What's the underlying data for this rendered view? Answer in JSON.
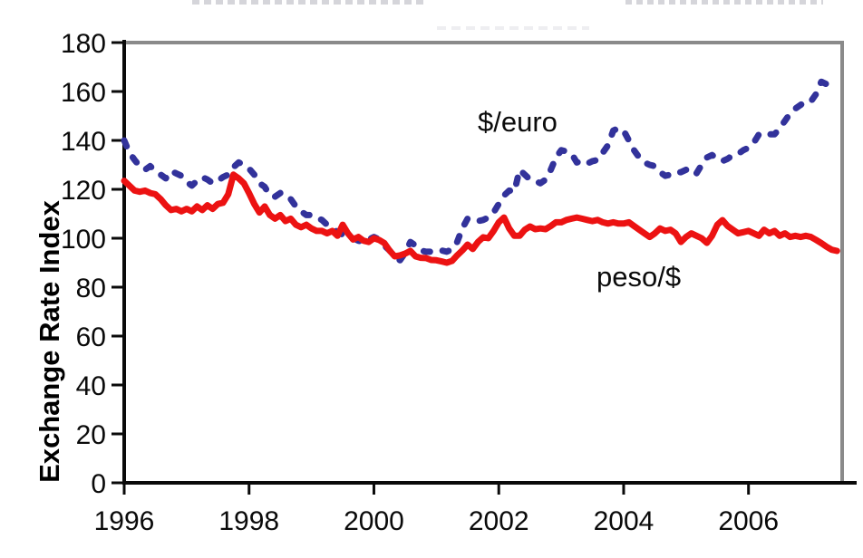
{
  "figure": {
    "background": "#ffffff",
    "top_edge_artifacts": "cropped illegible text fragments"
  },
  "labels": {
    "euro": "$/euro",
    "peso": "peso/$"
  },
  "colors": {
    "euro_line": "#32329B",
    "peso_line": "#EC1212",
    "frame_gray": "#8a8a8a",
    "axis_black": "#0a0a0a"
  },
  "chart_data": {
    "type": "line",
    "title": "",
    "xlabel": "",
    "ylabel": "Exchange Rate Index",
    "xlim": [
      1996,
      2007.5
    ],
    "ylim": [
      0,
      180
    ],
    "grid": false,
    "legend_position": "inline-annotations",
    "x_ticks": [
      1996,
      1998,
      2000,
      2002,
      2004,
      2006
    ],
    "y_ticks": [
      0,
      20,
      40,
      60,
      80,
      100,
      120,
      140,
      160,
      180
    ],
    "x_start": 1996.0,
    "x_step": 0.0833333,
    "x_unit": "monthly",
    "series": [
      {
        "id": "euro",
        "name": "$/euro",
        "color": "#32329B",
        "style": "dashed",
        "values": [
          140,
          135,
          132,
          129.5,
          128,
          129.5,
          127.5,
          126,
          124.5,
          127.5,
          126.5,
          125.5,
          123,
          121.5,
          123.5,
          125,
          124,
          122.5,
          123.5,
          125,
          126,
          129,
          131,
          130,
          128.5,
          126,
          122.5,
          121,
          117.5,
          117,
          118.5,
          116.5,
          116,
          113,
          111,
          109.5,
          109.5,
          108.5,
          107.5,
          105.5,
          104,
          102.5,
          101.5,
          101,
          100,
          99,
          98.5,
          99.5,
          100.5,
          99.5,
          97,
          95,
          92.5,
          91,
          94,
          98.5,
          97,
          95,
          94.5,
          94.5,
          95,
          95,
          94.5,
          95.5,
          98.5,
          104,
          108,
          107.5,
          107,
          107.5,
          108.5,
          110.5,
          114,
          117.5,
          119.5,
          119,
          128,
          126,
          124,
          123.5,
          122.5,
          124,
          128,
          133,
          136,
          135.5,
          134.5,
          131,
          131.5,
          130.5,
          131.5,
          132,
          135,
          138,
          144,
          145,
          144,
          140,
          136,
          133,
          131,
          130,
          129.5,
          127,
          125.5,
          126,
          127,
          127,
          128,
          126,
          126.5,
          130,
          133,
          134,
          132.5,
          131.5,
          132.5,
          134,
          134.5,
          136,
          137,
          139,
          142.5,
          143,
          142.5,
          142.5,
          145,
          148,
          151,
          153,
          154.5,
          156,
          156,
          159,
          164,
          163,
          163.5,
          165
        ]
      },
      {
        "id": "peso",
        "name": "peso/$",
        "color": "#EC1212",
        "style": "solid",
        "values": [
          123.5,
          121.5,
          119.5,
          119,
          119.5,
          118.5,
          118,
          116,
          113.5,
          111.5,
          112,
          111,
          112,
          111,
          113,
          111.5,
          113.5,
          112,
          114,
          114.5,
          118,
          126,
          124.5,
          122.5,
          118.5,
          114,
          110.5,
          113,
          109.5,
          108,
          109.5,
          107,
          108,
          105.5,
          104.5,
          105.5,
          104,
          103,
          103,
          102,
          103,
          101,
          105.5,
          102,
          99.5,
          100.5,
          99,
          98.5,
          100,
          99.3,
          98,
          95,
          92.6,
          93,
          93.7,
          94.8,
          92.6,
          92,
          91.9,
          91.1,
          91,
          90.5,
          90,
          90.7,
          93,
          95,
          97.4,
          95.6,
          98.5,
          100.4,
          100,
          103,
          106.5,
          108.5,
          104,
          101,
          101,
          103.5,
          104.8,
          103.7,
          104,
          103.7,
          105,
          106.5,
          106.5,
          107.5,
          108,
          108.5,
          108,
          107.5,
          107,
          107.5,
          106.5,
          106,
          106.5,
          106,
          106,
          106.5,
          105,
          103.5,
          102,
          100.5,
          102,
          104,
          103,
          103.5,
          102,
          98.5,
          100.5,
          102,
          101,
          100,
          98.1,
          101,
          105.5,
          107.4,
          105,
          103.5,
          102,
          102.5,
          103,
          102,
          101,
          103.5,
          102,
          103,
          101,
          102,
          100.5,
          101,
          100.5,
          101,
          100.5,
          99.3,
          98,
          96.5,
          95.3,
          94.8
        ]
      }
    ]
  }
}
